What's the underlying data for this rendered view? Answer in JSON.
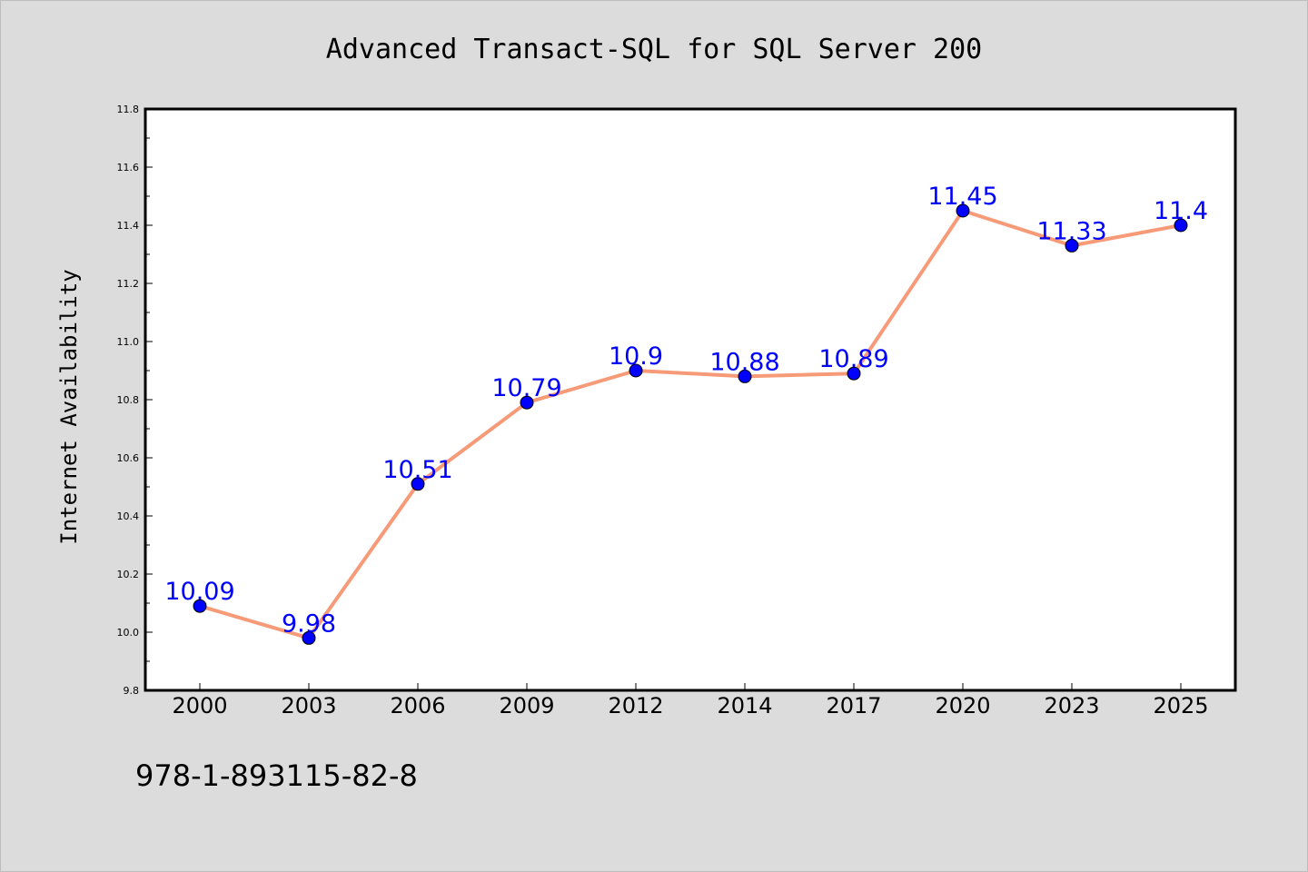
{
  "chart_data": {
    "type": "line",
    "title": "Advanced Transact-SQL for SQL Server 200",
    "ylabel": "Internet Availability",
    "xlabel": "",
    "categories": [
      "2000",
      "2003",
      "2006",
      "2009",
      "2012",
      "2014",
      "2017",
      "2020",
      "2023",
      "2025"
    ],
    "values": [
      10.09,
      9.98,
      10.51,
      10.79,
      10.9,
      10.88,
      10.89,
      11.45,
      11.33,
      11.4
    ],
    "data_labels": [
      "10.09",
      "9.98",
      "10.51",
      "10.79",
      "10.9",
      "10.88",
      "10.89",
      "11.45",
      "11.33",
      "11.4"
    ],
    "ylim": [
      9.8,
      11.8
    ],
    "yticks": [
      9.8,
      10.0,
      10.2,
      10.4,
      10.6,
      10.8,
      11.0,
      11.2,
      11.4,
      11.6,
      11.8
    ],
    "ytick_labels": [
      "9.8",
      "10.0",
      "10.2",
      "10.4",
      "10.6",
      "10.8",
      "11.0",
      "11.2",
      "11.4",
      "11.6",
      "11.8"
    ],
    "grid": false,
    "line_color": "#f79a78",
    "marker_color": "#0000ff",
    "label_color": "#0000ff"
  },
  "footer": {
    "isbn": "978-1-893115-82-8"
  }
}
